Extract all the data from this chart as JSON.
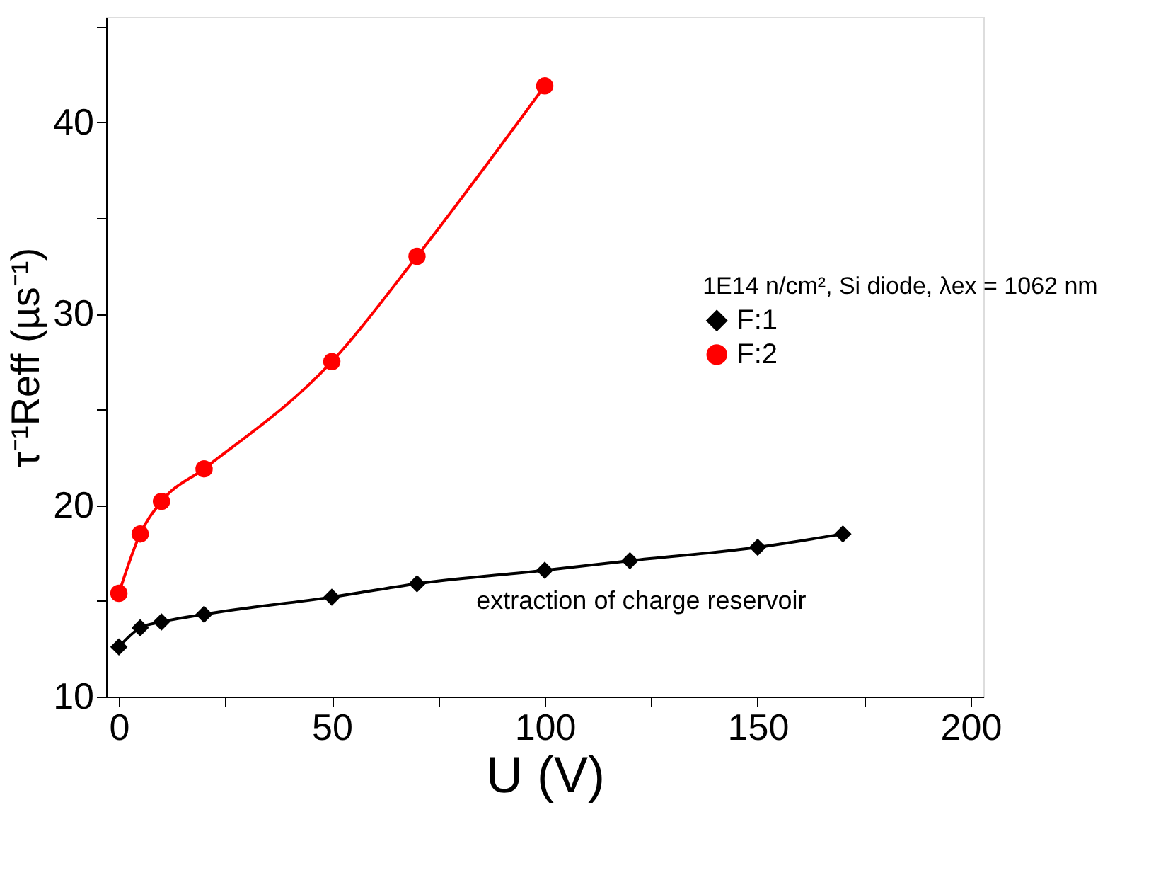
{
  "chart_data": {
    "type": "line",
    "xlabel": "U (V)",
    "ylabel": "τ⁻¹Reff (µs⁻¹)",
    "legend_title": "1E14 n/cm², Si diode, λex = 1062 nm",
    "series": [
      {
        "name": "F:1",
        "color": "#000000",
        "marker": "diamond",
        "x": [
          0,
          5,
          10,
          20,
          50,
          70,
          100,
          120,
          150,
          170
        ],
        "values": [
          12.6,
          13.6,
          13.9,
          14.3,
          15.2,
          15.9,
          16.6,
          17.1,
          17.8,
          18.5
        ]
      },
      {
        "name": "F:2",
        "color": "#ff0000",
        "marker": "circle",
        "x": [
          0,
          5,
          10,
          20,
          50,
          70,
          100
        ],
        "values": [
          15.4,
          18.5,
          20.2,
          21.9,
          27.5,
          33.0,
          41.9
        ]
      }
    ],
    "xlim": [
      -3,
      203
    ],
    "ylim": [
      10,
      45.5
    ],
    "xticks": [
      0,
      {
        "value": 25,
        "label": null
      },
      50,
      {
        "value": 75,
        "label": null
      },
      100,
      {
        "value": 125,
        "label": null
      },
      150,
      {
        "value": 175,
        "label": null
      },
      200
    ],
    "yticks": [
      10,
      {
        "value": 15,
        "label": null
      },
      20,
      {
        "value": 25,
        "label": null
      },
      30,
      {
        "value": 35,
        "label": null
      },
      40,
      {
        "value": 45,
        "label": null
      }
    ],
    "annotations": [
      "extraction of charge reservoir"
    ],
    "grid": false,
    "legend": "right",
    "line_style": "solid"
  }
}
